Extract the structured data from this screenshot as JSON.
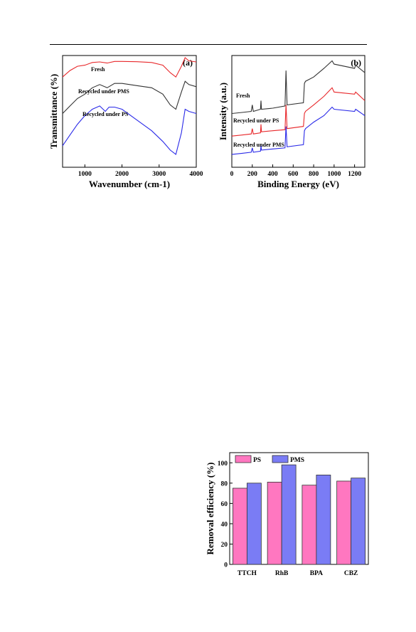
{
  "chart_data": [
    {
      "panel": "(a)",
      "type": "line",
      "xlabel": "Wavenumber (cm-1)",
      "ylabel": "Transmittance (%)",
      "xlim": [
        400,
        4000
      ],
      "xticks": [
        1000,
        2000,
        3000,
        4000
      ],
      "series": [
        {
          "name": "Fresh",
          "color": "#e8282b",
          "x": [
            400,
            600,
            800,
            1000,
            1200,
            1400,
            1600,
            1800,
            2000,
            2400,
            2800,
            3100,
            3300,
            3450,
            3600,
            3700,
            3800,
            4000
          ],
          "y": [
            0.82,
            0.88,
            0.92,
            0.93,
            0.955,
            0.96,
            0.95,
            0.965,
            0.965,
            0.962,
            0.955,
            0.93,
            0.86,
            0.82,
            0.92,
            1.0,
            0.97,
            0.96
          ]
        },
        {
          "name": "Recycled under PMS",
          "color": "#333333",
          "x": [
            400,
            600,
            800,
            1000,
            1200,
            1400,
            1600,
            1800,
            2000,
            2400,
            2800,
            3100,
            3300,
            3450,
            3600,
            3700,
            3800,
            4000
          ],
          "y": [
            0.48,
            0.55,
            0.62,
            0.66,
            0.72,
            0.75,
            0.72,
            0.76,
            0.76,
            0.74,
            0.72,
            0.66,
            0.56,
            0.52,
            0.68,
            0.78,
            0.75,
            0.73
          ]
        },
        {
          "name": "Recycled under PS",
          "color": "#2a2ae8",
          "x": [
            400,
            600,
            800,
            1000,
            1200,
            1400,
            1550,
            1650,
            1800,
            2000,
            2400,
            2800,
            3100,
            3300,
            3450,
            3600,
            3700,
            3800,
            4000
          ],
          "y": [
            0.18,
            0.28,
            0.38,
            0.46,
            0.52,
            0.55,
            0.5,
            0.54,
            0.54,
            0.52,
            0.42,
            0.32,
            0.22,
            0.14,
            0.1,
            0.3,
            0.52,
            0.5,
            0.48
          ]
        }
      ]
    },
    {
      "panel": "(b)",
      "type": "line",
      "xlabel": "Binding Energy (eV)",
      "ylabel": "Intensity (a.u.)",
      "xlim": [
        0,
        1300
      ],
      "xticks": [
        0,
        200,
        400,
        600,
        800,
        1000,
        1200
      ],
      "series": [
        {
          "name": "Fresh",
          "color": "#333333",
          "x": [
            0,
            100,
            190,
            200,
            210,
            280,
            285,
            290,
            400,
            520,
            530,
            540,
            700,
            710,
            720,
            800,
            900,
            980,
            1000,
            1200,
            1210,
            1300
          ],
          "y": [
            0.48,
            0.49,
            0.5,
            0.56,
            0.5,
            0.52,
            0.6,
            0.52,
            0.53,
            0.55,
            0.88,
            0.56,
            0.58,
            0.76,
            0.78,
            0.82,
            0.9,
            0.97,
            0.94,
            0.9,
            0.93,
            0.86
          ]
        },
        {
          "name": "Recycled under PS",
          "color": "#e8282b",
          "x": [
            0,
            100,
            190,
            200,
            210,
            280,
            285,
            290,
            400,
            520,
            530,
            540,
            700,
            710,
            720,
            800,
            900,
            980,
            1000,
            1200,
            1210,
            1300
          ],
          "y": [
            0.27,
            0.28,
            0.29,
            0.34,
            0.29,
            0.3,
            0.38,
            0.31,
            0.32,
            0.33,
            0.56,
            0.34,
            0.36,
            0.48,
            0.5,
            0.56,
            0.64,
            0.72,
            0.68,
            0.66,
            0.68,
            0.6
          ]
        },
        {
          "name": "Recycled under PMS",
          "color": "#2a2ae8",
          "x": [
            0,
            100,
            190,
            200,
            210,
            280,
            285,
            290,
            400,
            520,
            530,
            540,
            700,
            710,
            720,
            800,
            900,
            980,
            1000,
            1200,
            1210,
            1300
          ],
          "y": [
            0.1,
            0.11,
            0.12,
            0.16,
            0.12,
            0.13,
            0.18,
            0.14,
            0.15,
            0.16,
            0.36,
            0.17,
            0.19,
            0.32,
            0.34,
            0.4,
            0.46,
            0.54,
            0.52,
            0.5,
            0.52,
            0.46
          ]
        }
      ]
    },
    {
      "type": "bar",
      "ylabel": "Removal efficiency (%)",
      "ylim": [
        0,
        110
      ],
      "yticks": [
        0,
        20,
        40,
        60,
        80,
        100
      ],
      "categories": [
        "TTCH",
        "RhB",
        "BPA",
        "CBZ"
      ],
      "series": [
        {
          "name": "PS",
          "color": "#ff77c0",
          "values": [
            75,
            81,
            78,
            82
          ]
        },
        {
          "name": "PMS",
          "color": "#7a7cf5",
          "values": [
            80,
            98,
            88,
            85
          ]
        }
      ]
    }
  ]
}
